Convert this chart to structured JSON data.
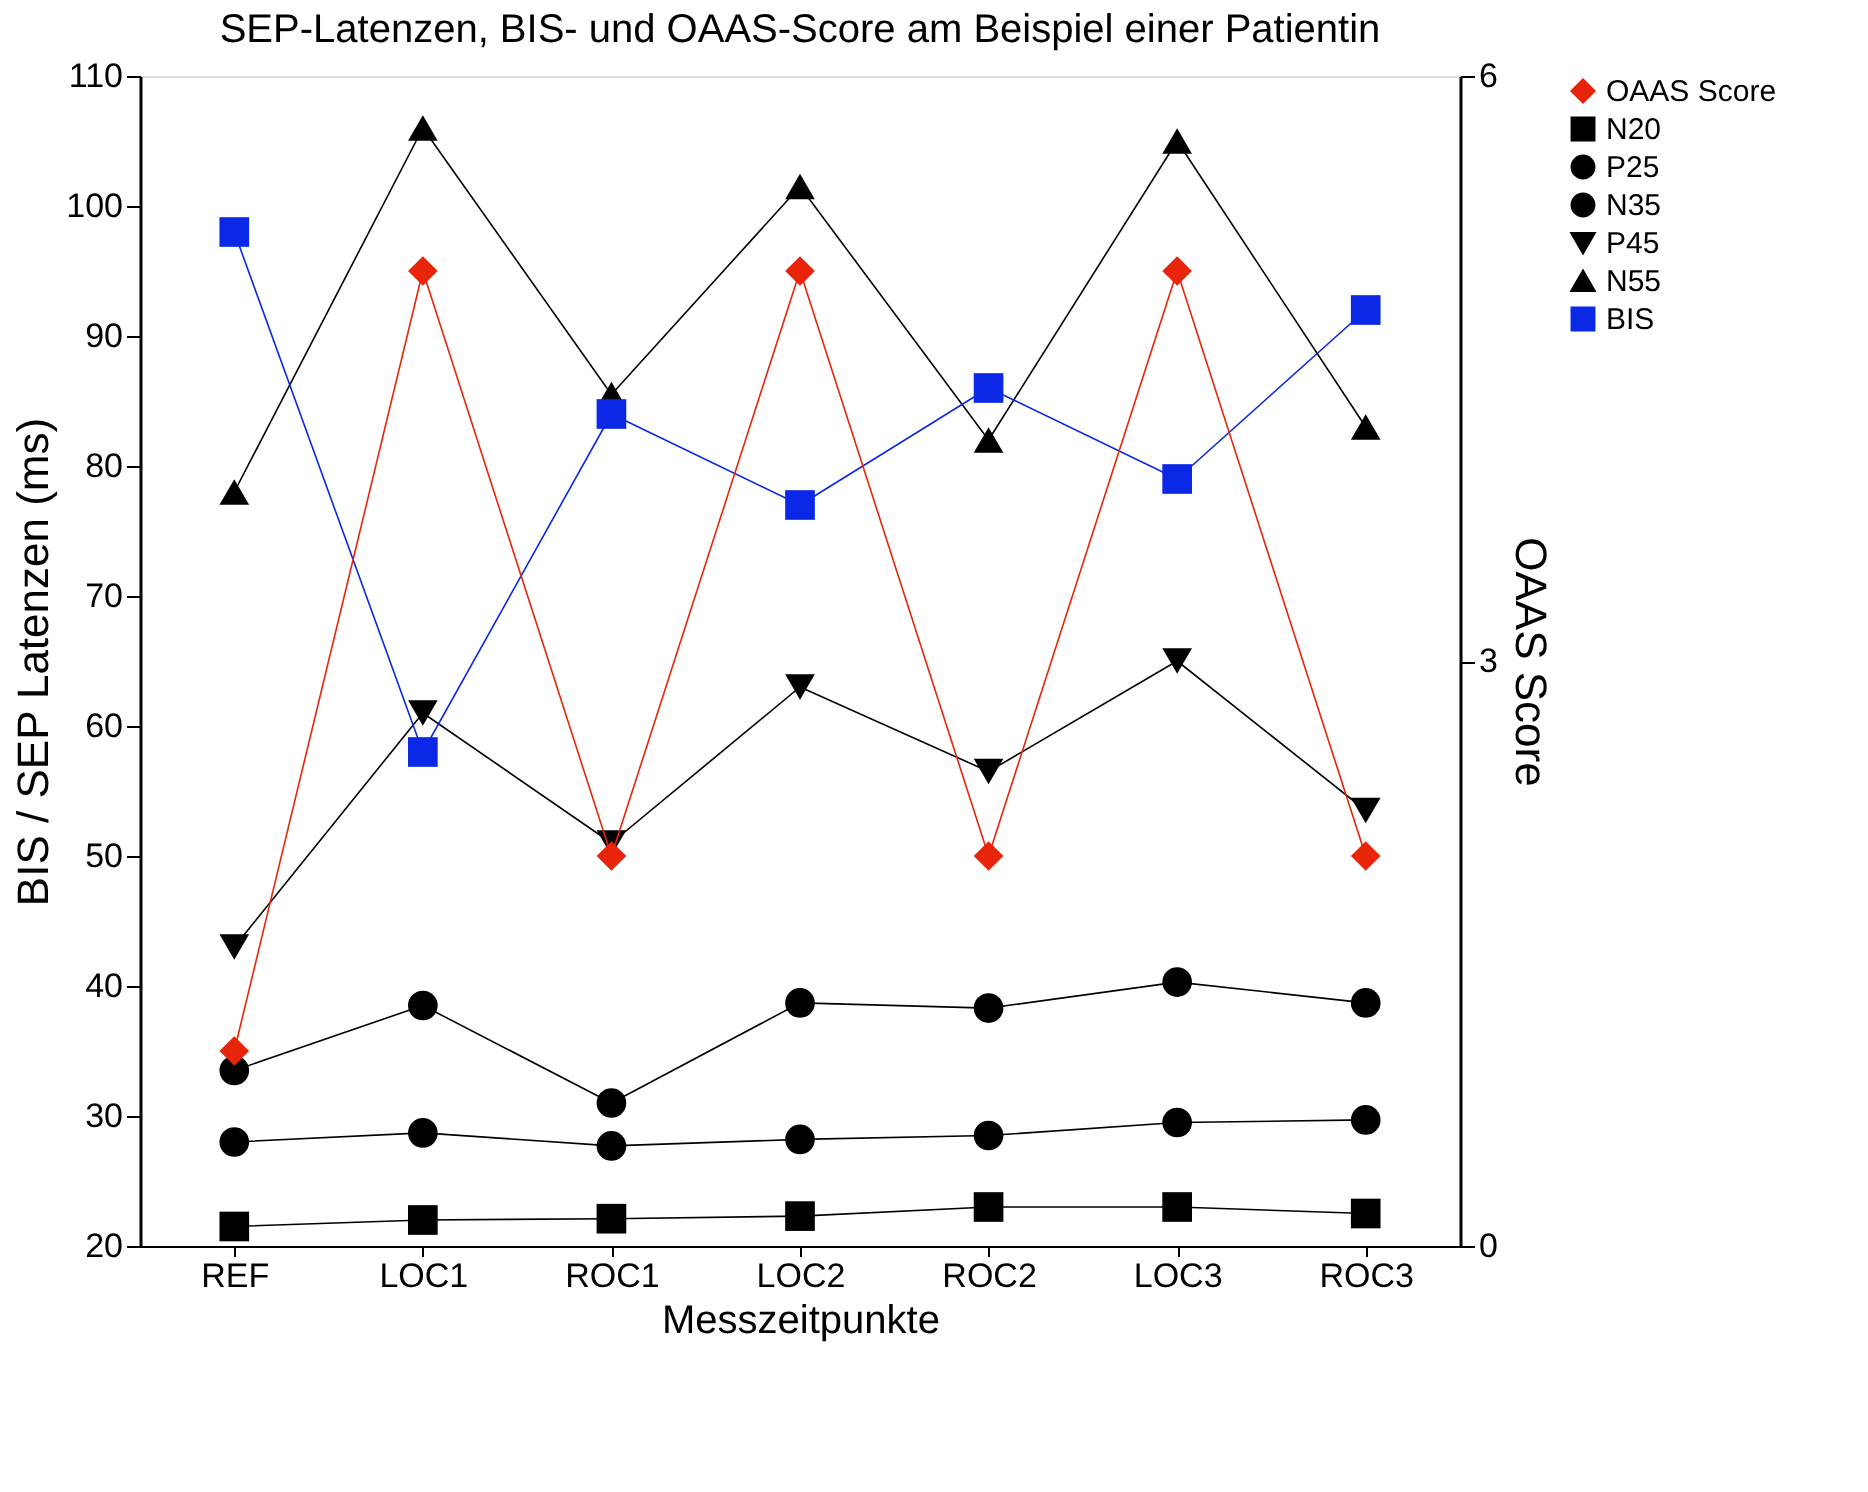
{
  "chart_data": {
    "type": "line",
    "title": "SEP-Latenzen, BIS- und OAAS-Score am Beispiel einer Patientin",
    "xlabel": "Messzeitpunkte",
    "ylabel": "BIS / SEP Latenzen (ms)",
    "y2label": "OAAS Score",
    "categories": [
      "REF",
      "LOC1",
      "ROC1",
      "LOC2",
      "ROC2",
      "LOC3",
      "ROC3"
    ],
    "series": [
      {
        "name": "OAAS Score",
        "color": "#e8250a",
        "marker": "diamond",
        "axis": "y2",
        "values": [
          1,
          5,
          2,
          5,
          2,
          5,
          2
        ]
      },
      {
        "name": "N20",
        "color": "#000000",
        "marker": "square",
        "values": [
          21.5,
          22,
          22.1,
          22.3,
          23,
          23,
          22.5
        ]
      },
      {
        "name": "P25",
        "color": "#000000",
        "marker": "circle",
        "values": [
          28,
          28.7,
          27.7,
          28.2,
          28.5,
          29.5,
          29.7
        ]
      },
      {
        "name": "N35",
        "color": "#000000",
        "marker": "circle",
        "values": [
          33.5,
          38.5,
          31,
          38.7,
          38.3,
          40.3,
          38.7
        ]
      },
      {
        "name": "P45",
        "color": "#000000",
        "marker": "triangle-down",
        "values": [
          43,
          61,
          51,
          63,
          56.5,
          65,
          53.5
        ]
      },
      {
        "name": "N55",
        "color": "#000000",
        "marker": "triangle",
        "values": [
          78,
          106,
          85.5,
          101.5,
          82,
          105,
          83
        ]
      },
      {
        "name": "BIS",
        "color": "#0a28e6",
        "marker": "square",
        "values": [
          98,
          58,
          84,
          77,
          86,
          79,
          92
        ]
      }
    ],
    "ylim": [
      20,
      110
    ],
    "yticks": [
      20,
      30,
      40,
      50,
      60,
      70,
      80,
      90,
      100,
      110
    ],
    "y2lim": [
      0,
      6
    ],
    "y2ticks": [
      0,
      3,
      6
    ],
    "grid": false,
    "legend": "right",
    "line_style": "solid"
  }
}
